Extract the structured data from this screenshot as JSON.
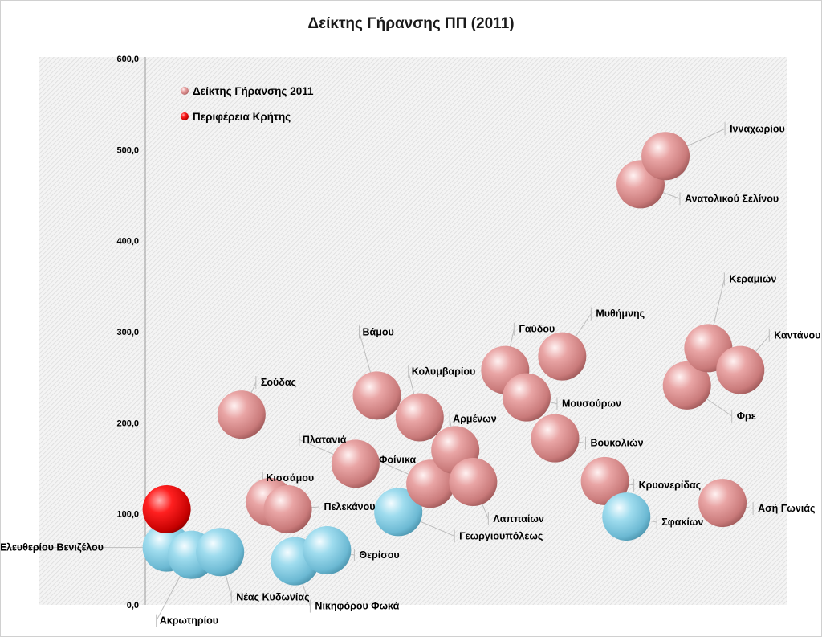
{
  "chart_data": {
    "type": "scatter",
    "title": "Δείκτης Γήρανσης ΠΠ  (2011)",
    "ylim": [
      0,
      600
    ],
    "yticks": [
      "0,0",
      "100,0",
      "200,0",
      "300,0",
      "400,0",
      "500,0",
      "600,0"
    ],
    "grid": false,
    "legend_position": "top-left",
    "legend": [
      {
        "label": "Δείκτης Γήρανσης 2011",
        "color": "#e79a9a"
      },
      {
        "label": "Περιφέρεια Κρήτης",
        "color": "#ff1a1a"
      }
    ],
    "series": [
      {
        "name": "Δείκτης Γήρανσης 2011",
        "color_high": "#e79a9a",
        "color_low": "#8fd3e8",
        "points": [
          {
            "label": "Ελευθερίου Βενιζέλου",
            "x": 0.3,
            "y": 63,
            "tone": "low"
          },
          {
            "label": "Ακρωτηρίου",
            "x": 0.65,
            "y": 55,
            "tone": "low"
          },
          {
            "label": "Νέας Κυδωνίας",
            "x": 1.05,
            "y": 58,
            "tone": "low"
          },
          {
            "label": "Κισσάμου",
            "x": 1.75,
            "y": 113,
            "tone": "high"
          },
          {
            "label": "Πελεκάνου",
            "x": 2.0,
            "y": 105,
            "tone": "high"
          },
          {
            "label": "Σούδας",
            "x": 1.35,
            "y": 209,
            "tone": "high"
          },
          {
            "label": "Νικηφόρου Φωκά",
            "x": 2.1,
            "y": 48,
            "tone": "low"
          },
          {
            "label": "Θερίσου",
            "x": 2.55,
            "y": 60,
            "tone": "low"
          },
          {
            "label": "Πλατανιά",
            "x": 2.95,
            "y": 155,
            "tone": "high"
          },
          {
            "label": "Γεωργιουπόλεως",
            "x": 3.55,
            "y": 102,
            "tone": "low"
          },
          {
            "label": "Βάμου",
            "x": 3.25,
            "y": 230,
            "tone": "high"
          },
          {
            "label": "Κολυμβαρίου",
            "x": 3.85,
            "y": 206,
            "tone": "high"
          },
          {
            "label": "Φοίνικα",
            "x": 4.0,
            "y": 133,
            "tone": "high"
          },
          {
            "label": "Αρμένων",
            "x": 4.35,
            "y": 170,
            "tone": "high"
          },
          {
            "label": "Λαππαίων",
            "x": 4.6,
            "y": 135,
            "tone": "high"
          },
          {
            "label": "Γαύδου",
            "x": 5.05,
            "y": 258,
            "tone": "high"
          },
          {
            "label": "Μουσούρων",
            "x": 5.35,
            "y": 228,
            "tone": "high"
          },
          {
            "label": "Μυθήμνης",
            "x": 5.85,
            "y": 273,
            "tone": "high"
          },
          {
            "label": "Βουκολιών",
            "x": 5.75,
            "y": 183,
            "tone": "high"
          },
          {
            "label": "Κρυονερίδας",
            "x": 6.45,
            "y": 136,
            "tone": "high"
          },
          {
            "label": "Σφακίων",
            "x": 6.75,
            "y": 97,
            "tone": "low"
          },
          {
            "label": "Ανατολικού Σελίνου",
            "x": 6.95,
            "y": 462,
            "tone": "high"
          },
          {
            "label": "Ινναχωρίου",
            "x": 7.3,
            "y": 493,
            "tone": "high"
          },
          {
            "label": "Φρε",
            "x": 7.6,
            "y": 241,
            "tone": "high"
          },
          {
            "label": "Κεραμιών",
            "x": 7.9,
            "y": 282,
            "tone": "high"
          },
          {
            "label": "Καντάνου",
            "x": 8.35,
            "y": 258,
            "tone": "high"
          },
          {
            "label": "Ασή Γωνιάς",
            "x": 8.1,
            "y": 112,
            "tone": "high"
          }
        ]
      },
      {
        "name": "Περιφέρεια Κρήτης",
        "color": "#ff1a1a",
        "points": [
          {
            "label": "",
            "x": 0.3,
            "y": 105
          }
        ]
      }
    ]
  }
}
